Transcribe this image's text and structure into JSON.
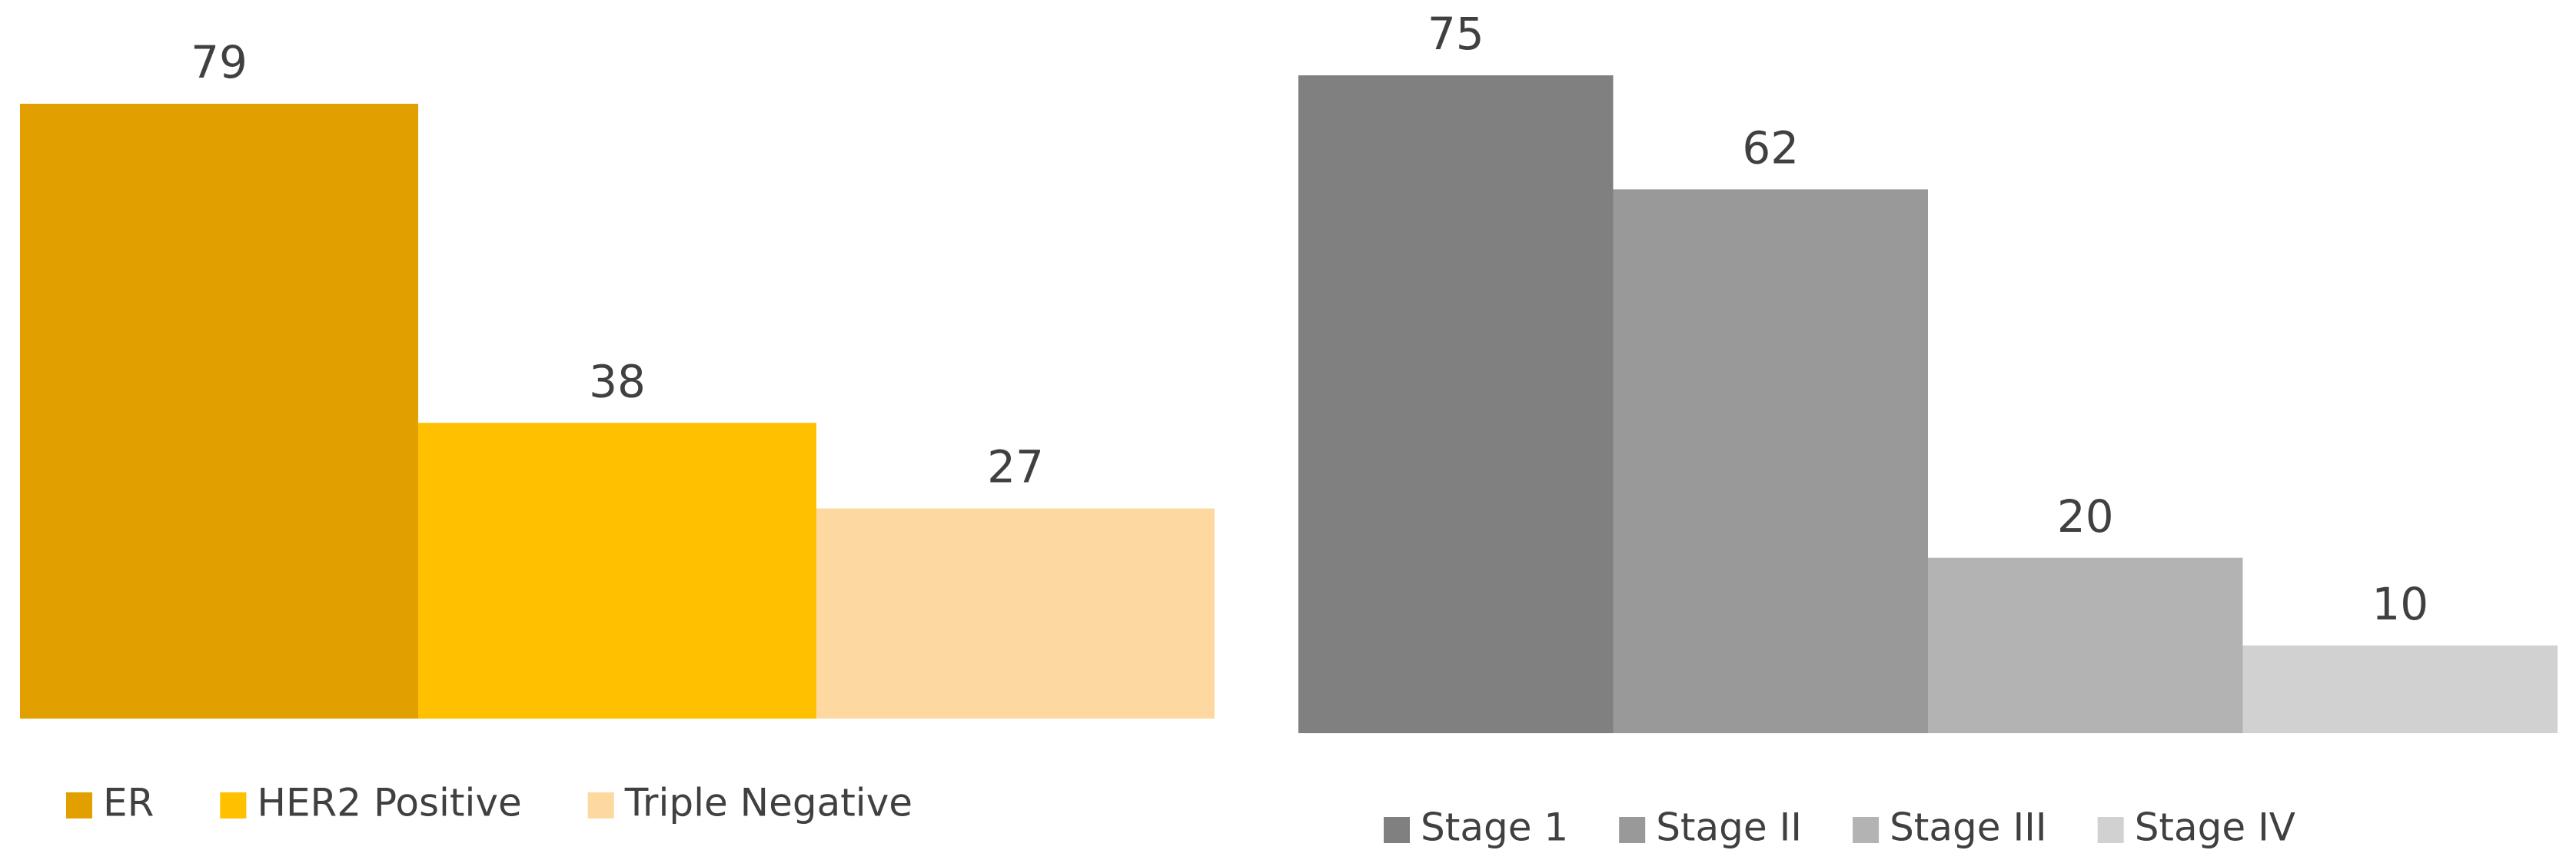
{
  "chart_data": [
    {
      "type": "bar",
      "series": [
        {
          "name": "ER",
          "color": "#e2a000",
          "values": [
            79
          ]
        },
        {
          "name": "HER2 Positive",
          "color": "#ffc000",
          "values": [
            38
          ]
        },
        {
          "name": "Triple Negative",
          "color": "#fdd9a1",
          "values": [
            27
          ]
        }
      ]
    },
    {
      "type": "bar",
      "series": [
        {
          "name": "Stage 1",
          "color": "#808080",
          "values": [
            75
          ]
        },
        {
          "name": "Stage II",
          "color": "#999999",
          "values": [
            62
          ]
        },
        {
          "name": "Stage III",
          "color": "#b3b3b3",
          "values": [
            20
          ]
        },
        {
          "name": "Stage IV",
          "color": "#d1d1d1",
          "values": [
            10
          ]
        }
      ]
    }
  ]
}
